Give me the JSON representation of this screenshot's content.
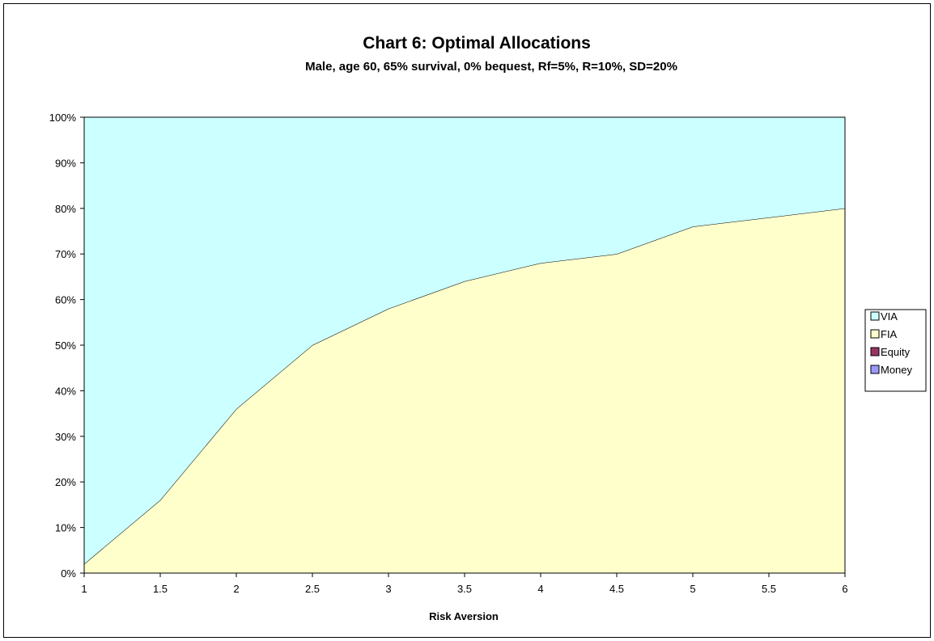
{
  "chart_data": {
    "type": "area",
    "stacked": true,
    "title": "Chart 6: Optimal Allocations",
    "subtitle": "Male, age 60, 65% survival, 0% bequest, Rf=5%, R=10%, SD=20%",
    "xlabel": "Risk Aversion",
    "ylabel": "",
    "x": [
      1,
      1.5,
      2,
      2.5,
      3,
      3.5,
      4,
      4.5,
      5,
      5.5,
      6
    ],
    "x_tick_labels": [
      "1",
      "1.5",
      "2",
      "2.5",
      "3",
      "3.5",
      "4",
      "4.5",
      "5",
      "5.5",
      "6"
    ],
    "y_tick_labels": [
      "0%",
      "10%",
      "20%",
      "30%",
      "40%",
      "50%",
      "60%",
      "70%",
      "80%",
      "90%",
      "100%"
    ],
    "ylim": [
      0,
      100
    ],
    "grid": false,
    "legend_position": "right",
    "series": [
      {
        "name": "Money",
        "values": [
          0,
          0,
          0,
          0,
          0,
          0,
          0,
          0,
          0,
          0,
          0
        ],
        "color": "#9999ff"
      },
      {
        "name": "Equity",
        "values": [
          0,
          0,
          0,
          0,
          0,
          0,
          0,
          0,
          0,
          0,
          0
        ],
        "color": "#993366"
      },
      {
        "name": "FIA",
        "values": [
          2,
          16,
          36,
          50,
          58,
          64,
          68,
          70,
          76,
          78,
          80
        ],
        "color": "#ffffcc"
      },
      {
        "name": "VIA",
        "values": [
          98,
          84,
          64,
          50,
          42,
          36,
          32,
          30,
          24,
          22,
          20
        ],
        "color": "#ccffff"
      }
    ],
    "legend_order": [
      "VIA",
      "FIA",
      "Equity",
      "Money"
    ]
  }
}
